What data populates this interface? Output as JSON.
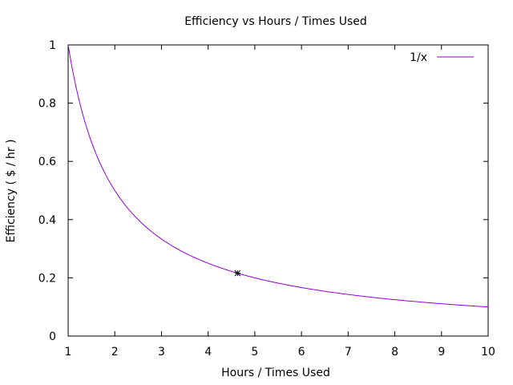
{
  "chart_data": {
    "type": "line",
    "title": "Efficiency vs Hours / Times Used",
    "xlabel": "Hours / Times Used",
    "ylabel": "Efficiency ( $ / hr )",
    "xlim": [
      1,
      10
    ],
    "ylim": [
      0,
      1
    ],
    "x_ticks": [
      1,
      2,
      3,
      4,
      5,
      6,
      7,
      8,
      9,
      10
    ],
    "y_ticks": [
      0,
      0.2,
      0.4,
      0.6,
      0.8,
      1
    ],
    "y_tick_labels": [
      "0",
      "0.2",
      "0.4",
      "0.6",
      "0.8",
      "1"
    ],
    "grid": false,
    "legend_position": "top-right",
    "series": [
      {
        "name": "1/x",
        "color": "#9400d3",
        "function": "1/x",
        "x": [
          1,
          1.5,
          2,
          2.5,
          3,
          3.5,
          4,
          4.5,
          5,
          5.5,
          6,
          6.5,
          7,
          7.5,
          8,
          8.5,
          9,
          9.5,
          10
        ],
        "y": [
          1,
          0.667,
          0.5,
          0.4,
          0.333,
          0.286,
          0.25,
          0.222,
          0.2,
          0.182,
          0.167,
          0.154,
          0.143,
          0.133,
          0.125,
          0.118,
          0.111,
          0.105,
          0.1
        ]
      }
    ],
    "annotations": [
      {
        "type": "point-marker",
        "marker": "asterisk",
        "x": 4.63,
        "y": 0.216
      }
    ]
  }
}
